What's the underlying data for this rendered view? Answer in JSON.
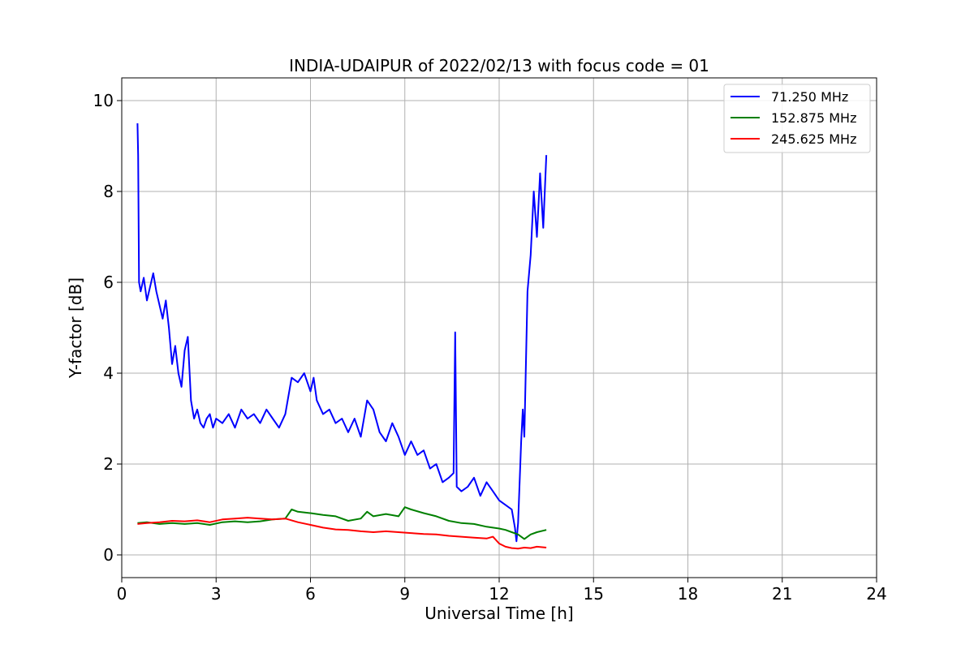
{
  "chart_data": {
    "type": "line",
    "title": "INDIA-UDAIPUR of 2022/02/13 with focus code = 01",
    "xlabel": "Universal Time [h]",
    "ylabel": "Y-factor [dB]",
    "xlim": [
      0,
      24
    ],
    "ylim": [
      -0.5,
      10.5
    ],
    "xticks": [
      0,
      3,
      6,
      9,
      12,
      15,
      18,
      21,
      24
    ],
    "yticks": [
      0,
      2,
      4,
      6,
      8,
      10
    ],
    "grid": true,
    "legend_position": "top-right",
    "series": [
      {
        "name": "71.250 MHz",
        "legend_label": "  71.250 MHz",
        "color": "#0000ff",
        "x": [
          0.5,
          0.52,
          0.55,
          0.6,
          0.7,
          0.8,
          0.9,
          1.0,
          1.1,
          1.2,
          1.3,
          1.4,
          1.5,
          1.6,
          1.7,
          1.8,
          1.9,
          2.0,
          2.1,
          2.2,
          2.3,
          2.4,
          2.5,
          2.6,
          2.7,
          2.8,
          2.9,
          3.0,
          3.2,
          3.4,
          3.6,
          3.8,
          4.0,
          4.2,
          4.4,
          4.6,
          4.8,
          5.0,
          5.2,
          5.4,
          5.6,
          5.8,
          6.0,
          6.1,
          6.2,
          6.4,
          6.6,
          6.8,
          7.0,
          7.2,
          7.4,
          7.6,
          7.8,
          8.0,
          8.2,
          8.4,
          8.6,
          8.8,
          9.0,
          9.2,
          9.4,
          9.6,
          9.8,
          10.0,
          10.2,
          10.4,
          10.55,
          10.6,
          10.65,
          10.8,
          11.0,
          11.2,
          11.4,
          11.6,
          11.8,
          12.0,
          12.2,
          12.4,
          12.5,
          12.55,
          12.6,
          12.7,
          12.75,
          12.8,
          12.9,
          13.0,
          13.1,
          13.2,
          13.3,
          13.4,
          13.5
        ],
        "values": [
          9.5,
          8.8,
          6.0,
          5.8,
          6.1,
          5.6,
          5.9,
          6.2,
          5.8,
          5.5,
          5.2,
          5.6,
          5.0,
          4.2,
          4.6,
          4.0,
          3.7,
          4.5,
          4.8,
          3.4,
          3.0,
          3.2,
          2.9,
          2.8,
          3.0,
          3.1,
          2.8,
          3.0,
          2.9,
          3.1,
          2.8,
          3.2,
          3.0,
          3.1,
          2.9,
          3.2,
          3.0,
          2.8,
          3.1,
          3.9,
          3.8,
          4.0,
          3.6,
          3.9,
          3.4,
          3.1,
          3.2,
          2.9,
          3.0,
          2.7,
          3.0,
          2.6,
          3.4,
          3.2,
          2.7,
          2.5,
          2.9,
          2.6,
          2.2,
          2.5,
          2.2,
          2.3,
          1.9,
          2.0,
          1.6,
          1.7,
          1.8,
          4.9,
          1.5,
          1.4,
          1.5,
          1.7,
          1.3,
          1.6,
          1.4,
          1.2,
          1.1,
          1.0,
          0.6,
          0.3,
          0.7,
          2.5,
          3.2,
          2.6,
          5.8,
          6.6,
          8.0,
          7.0,
          8.4,
          7.2,
          8.8
        ]
      },
      {
        "name": "152.875 MHz",
        "legend_label": "152.875 MHz",
        "color": "#008000",
        "x": [
          0.5,
          0.8,
          1.2,
          1.6,
          2.0,
          2.4,
          2.8,
          3.2,
          3.6,
          4.0,
          4.4,
          4.8,
          5.2,
          5.4,
          5.6,
          6.0,
          6.4,
          6.8,
          7.2,
          7.6,
          7.8,
          8.0,
          8.4,
          8.8,
          9.0,
          9.2,
          9.6,
          10.0,
          10.4,
          10.8,
          11.2,
          11.6,
          12.0,
          12.2,
          12.4,
          12.6,
          12.8,
          13.0,
          13.2,
          13.5
        ],
        "values": [
          0.7,
          0.72,
          0.68,
          0.7,
          0.68,
          0.7,
          0.66,
          0.72,
          0.74,
          0.72,
          0.74,
          0.78,
          0.8,
          1.0,
          0.95,
          0.92,
          0.88,
          0.85,
          0.75,
          0.8,
          0.95,
          0.85,
          0.9,
          0.85,
          1.05,
          1.0,
          0.92,
          0.85,
          0.75,
          0.7,
          0.68,
          0.62,
          0.58,
          0.55,
          0.5,
          0.45,
          0.35,
          0.45,
          0.5,
          0.55
        ]
      },
      {
        "name": "245.625 MHz",
        "legend_label": "245.625 MHz",
        "color": "#ff0000",
        "x": [
          0.5,
          0.8,
          1.2,
          1.6,
          2.0,
          2.4,
          2.8,
          3.2,
          3.6,
          4.0,
          4.4,
          4.8,
          5.2,
          5.6,
          6.0,
          6.4,
          6.8,
          7.2,
          7.6,
          8.0,
          8.4,
          8.8,
          9.2,
          9.6,
          10.0,
          10.4,
          10.8,
          11.2,
          11.6,
          11.8,
          12.0,
          12.2,
          12.4,
          12.6,
          12.8,
          13.0,
          13.2,
          13.5
        ],
        "values": [
          0.68,
          0.7,
          0.72,
          0.75,
          0.74,
          0.76,
          0.72,
          0.78,
          0.8,
          0.82,
          0.8,
          0.78,
          0.8,
          0.72,
          0.66,
          0.6,
          0.56,
          0.55,
          0.52,
          0.5,
          0.52,
          0.5,
          0.48,
          0.46,
          0.45,
          0.42,
          0.4,
          0.38,
          0.36,
          0.4,
          0.25,
          0.18,
          0.15,
          0.14,
          0.16,
          0.15,
          0.18,
          0.16
        ]
      }
    ]
  }
}
